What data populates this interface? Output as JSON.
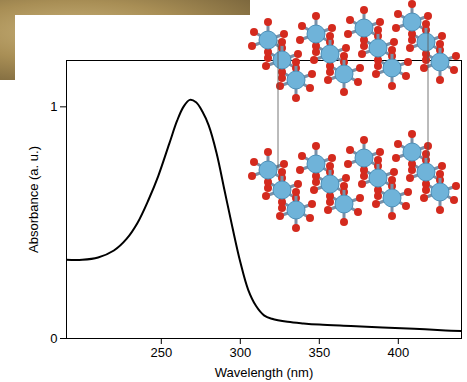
{
  "chart_data": {
    "type": "line",
    "x_label": "Wavelength (nm)",
    "y_label": "Absorbance (a. u.)",
    "x": [
      190,
      200,
      210,
      220,
      228,
      235,
      242,
      248,
      255,
      260,
      264,
      268,
      272,
      276,
      280,
      285,
      290,
      295,
      300,
      305,
      310,
      315,
      320,
      330,
      340,
      350,
      370,
      390,
      410,
      430,
      440
    ],
    "values": [
      0.34,
      0.34,
      0.35,
      0.38,
      0.43,
      0.5,
      0.6,
      0.7,
      0.84,
      0.94,
      1.0,
      1.03,
      1.02,
      0.98,
      0.92,
      0.8,
      0.64,
      0.48,
      0.33,
      0.21,
      0.14,
      0.1,
      0.085,
      0.072,
      0.065,
      0.06,
      0.054,
      0.048,
      0.042,
      0.035,
      0.032
    ],
    "color": "#000000",
    "xlim": [
      190,
      440
    ],
    "ylim": [
      0,
      1.2
    ],
    "xticks": [
      250,
      300,
      350,
      400
    ],
    "yticks": [
      0,
      1
    ]
  }
}
